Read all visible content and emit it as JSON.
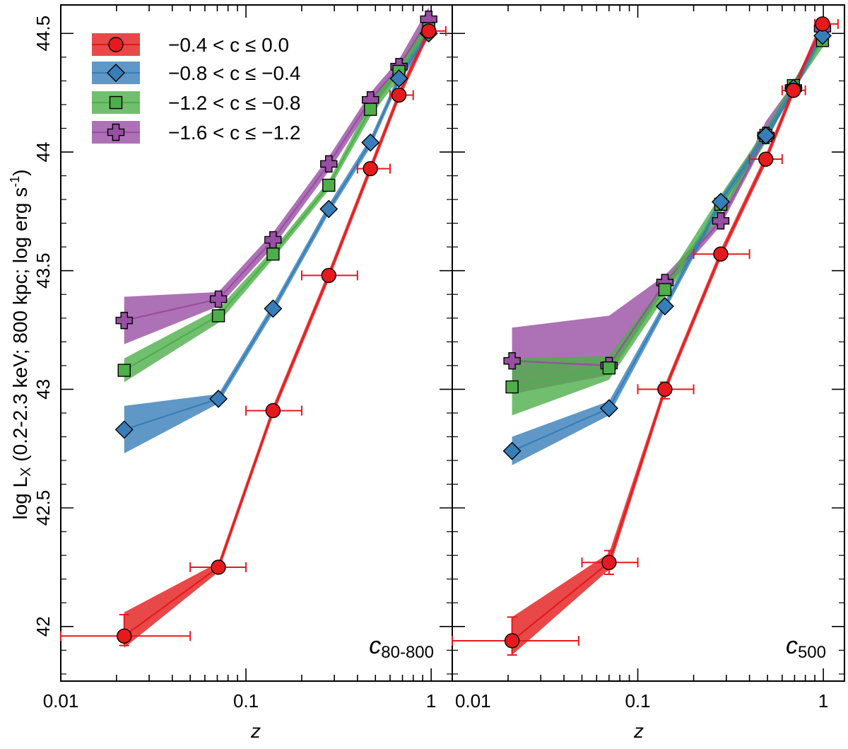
{
  "chart_data": [
    {
      "type": "line",
      "panel_label": "c",
      "panel_label_sub": "80-800",
      "xlabel": "z",
      "ylabel": "log L",
      "ylabel_sub": "X",
      "ylabel_rest": " (0.2-2.3 keV; 800 kpc; log erg s",
      "ylabel_sup": "-1",
      "ylabel_end": ")",
      "xscale": "log",
      "xlim": [
        0.01,
        1.3
      ],
      "ylim": [
        41.77,
        44.62
      ],
      "x_ticks": [
        "0.01",
        "0.1",
        "1"
      ],
      "y_ticks": [
        "42",
        "42.5",
        "43",
        "43.5",
        "44",
        "44.5"
      ],
      "legend_position": "top-left",
      "series": [
        {
          "name": "−0.4 < c ≤   0.0",
          "color": "#e41a1c",
          "marker": "circle",
          "x": [
            0.022,
            0.071,
            0.14,
            0.28,
            0.47,
            0.67,
            0.97
          ],
          "y": [
            41.96,
            42.25,
            42.91,
            43.48,
            43.93,
            44.24,
            44.51
          ],
          "band_lo": [
            41.91,
            42.23,
            42.89,
            43.46,
            43.91,
            44.22,
            44.49
          ],
          "band_hi": [
            42.06,
            42.27,
            42.93,
            43.5,
            43.95,
            44.26,
            44.53
          ],
          "x_err_lo": [
            0.01,
            0.05,
            0.1,
            0.2,
            0.4,
            0.6,
            0.9
          ],
          "x_err_hi": [
            0.05,
            0.1,
            0.2,
            0.4,
            0.6,
            0.8,
            1.2
          ],
          "y_err_lo": [
            41.92,
            null,
            null,
            null,
            null,
            null,
            null
          ],
          "y_err_hi": [
            42.05,
            null,
            null,
            null,
            null,
            null,
            null
          ]
        },
        {
          "name": "−0.8 < c ≤ −0.4",
          "color": "#377eb8",
          "marker": "diamond",
          "x": [
            0.022,
            0.071,
            0.14,
            0.28,
            0.47,
            0.67,
            0.97
          ],
          "y": [
            42.83,
            42.96,
            43.34,
            43.76,
            44.04,
            44.31,
            44.5
          ],
          "band_lo": [
            42.73,
            42.94,
            43.32,
            43.74,
            44.02,
            44.29,
            44.48
          ],
          "band_hi": [
            42.93,
            42.98,
            43.36,
            43.78,
            44.06,
            44.33,
            44.52
          ]
        },
        {
          "name": "−1.2 < c ≤ −0.8",
          "color": "#4daf4a",
          "marker": "square",
          "x": [
            0.022,
            0.071,
            0.14,
            0.28,
            0.47,
            0.67,
            0.97
          ],
          "y": [
            43.08,
            43.31,
            43.57,
            43.86,
            44.18,
            44.34,
            44.52
          ],
          "band_lo": [
            43.03,
            43.28,
            43.55,
            43.84,
            44.15,
            44.31,
            44.49
          ],
          "band_hi": [
            43.13,
            43.34,
            43.59,
            43.88,
            44.21,
            44.37,
            44.57
          ]
        },
        {
          "name": "−1.6 < c ≤ −1.2",
          "color": "#984ea3",
          "marker": "cross",
          "x": [
            0.022,
            0.071,
            0.14,
            0.28,
            0.47,
            0.67,
            0.97
          ],
          "y": [
            43.29,
            43.38,
            43.63,
            43.95,
            44.22,
            44.36,
            44.56
          ],
          "band_lo": [
            43.19,
            43.35,
            43.6,
            43.92,
            44.19,
            44.33,
            44.52
          ],
          "band_hi": [
            43.39,
            43.41,
            43.66,
            43.98,
            44.25,
            44.39,
            44.61
          ]
        }
      ]
    },
    {
      "type": "line",
      "panel_label": "c",
      "panel_label_sub": "500",
      "xlabel": "z",
      "xscale": "log",
      "xlim": [
        0.01,
        1.3
      ],
      "ylim": [
        41.77,
        44.62
      ],
      "x_ticks": [
        "0.01",
        "0.1",
        "1"
      ],
      "series": [
        {
          "name": "−0.4 < c ≤   0.0",
          "color": "#e41a1c",
          "marker": "circle",
          "x": [
            0.021,
            0.07,
            0.14,
            0.28,
            0.49,
            0.69,
            0.99
          ],
          "y": [
            41.94,
            42.27,
            43.0,
            43.57,
            43.97,
            44.26,
            44.54
          ],
          "band_lo": [
            41.88,
            42.24,
            42.98,
            43.55,
            43.95,
            44.24,
            44.52
          ],
          "band_hi": [
            42.04,
            42.31,
            43.02,
            43.59,
            43.99,
            44.28,
            44.56
          ],
          "x_err_lo": [
            0.01,
            0.05,
            0.1,
            0.2,
            0.4,
            0.6,
            0.9
          ],
          "x_err_hi": [
            0.048,
            0.1,
            0.2,
            0.4,
            0.6,
            0.8,
            1.2
          ],
          "y_err_lo": [
            41.88,
            42.22,
            42.96,
            null,
            null,
            null,
            null
          ],
          "y_err_hi": [
            42.04,
            42.32,
            43.03,
            null,
            null,
            null,
            null
          ]
        },
        {
          "name": "−0.8 < c ≤ −0.4",
          "color": "#377eb8",
          "marker": "diamond",
          "x": [
            0.021,
            0.07,
            0.14,
            0.28,
            0.49,
            0.69,
            0.99
          ],
          "y": [
            42.74,
            42.92,
            43.35,
            43.79,
            44.07,
            44.27,
            44.49
          ],
          "band_lo": [
            42.68,
            42.89,
            43.33,
            43.77,
            44.05,
            44.25,
            44.47
          ],
          "band_hi": [
            42.8,
            42.95,
            43.37,
            43.81,
            44.09,
            44.29,
            44.51
          ]
        },
        {
          "name": "−1.2 < c ≤ −0.8",
          "color": "#4daf4a",
          "marker": "square",
          "x": [
            0.021,
            0.07,
            0.14,
            0.28,
            0.49,
            0.69,
            0.99
          ],
          "y": [
            43.01,
            43.09,
            43.42,
            43.78,
            44.07,
            44.28,
            44.47
          ],
          "band_lo": [
            42.89,
            43.04,
            43.39,
            43.74,
            44.04,
            44.26,
            44.44
          ],
          "band_hi": [
            43.13,
            43.14,
            43.45,
            43.82,
            44.1,
            44.3,
            44.5
          ]
        },
        {
          "name": "−1.6 < c ≤ −1.2",
          "color": "#984ea3",
          "marker": "cross",
          "x": [
            0.021,
            0.07,
            0.14,
            0.28,
            0.49,
            0.69,
            0.99
          ],
          "y": [
            43.12,
            43.1,
            43.45,
            43.71,
            44.07,
            44.27,
            44.52
          ],
          "band_lo": [
            42.98,
            43.06,
            43.42,
            43.69,
            44.05,
            44.25,
            44.5
          ],
          "band_hi": [
            43.26,
            43.31,
            43.48,
            43.73,
            44.13,
            44.29,
            44.54
          ]
        }
      ]
    }
  ]
}
